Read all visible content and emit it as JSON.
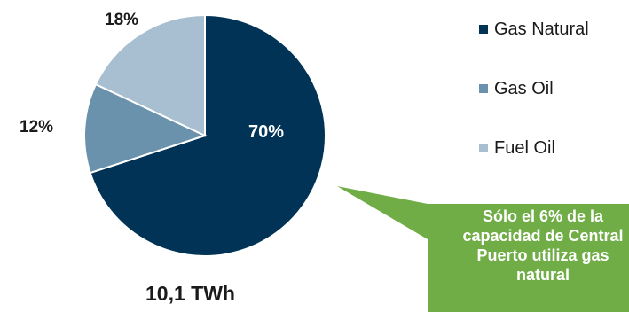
{
  "chart_data": {
    "type": "pie",
    "categories": [
      "Gas Natural",
      "Gas Oil",
      "Fuel Oil"
    ],
    "values": [
      70,
      12,
      18
    ],
    "labels": [
      "70%",
      "12%",
      "18%"
    ],
    "colors": [
      "#003356",
      "#6b92ad",
      "#a8bfd1"
    ],
    "total_label": "10,1 TWh",
    "legend_placement": "right"
  },
  "callout": {
    "text": "Sólo el 6% de la\ncapacidad de Central\nPuerto utiliza gas\nnatural",
    "color": "#70ad47"
  }
}
